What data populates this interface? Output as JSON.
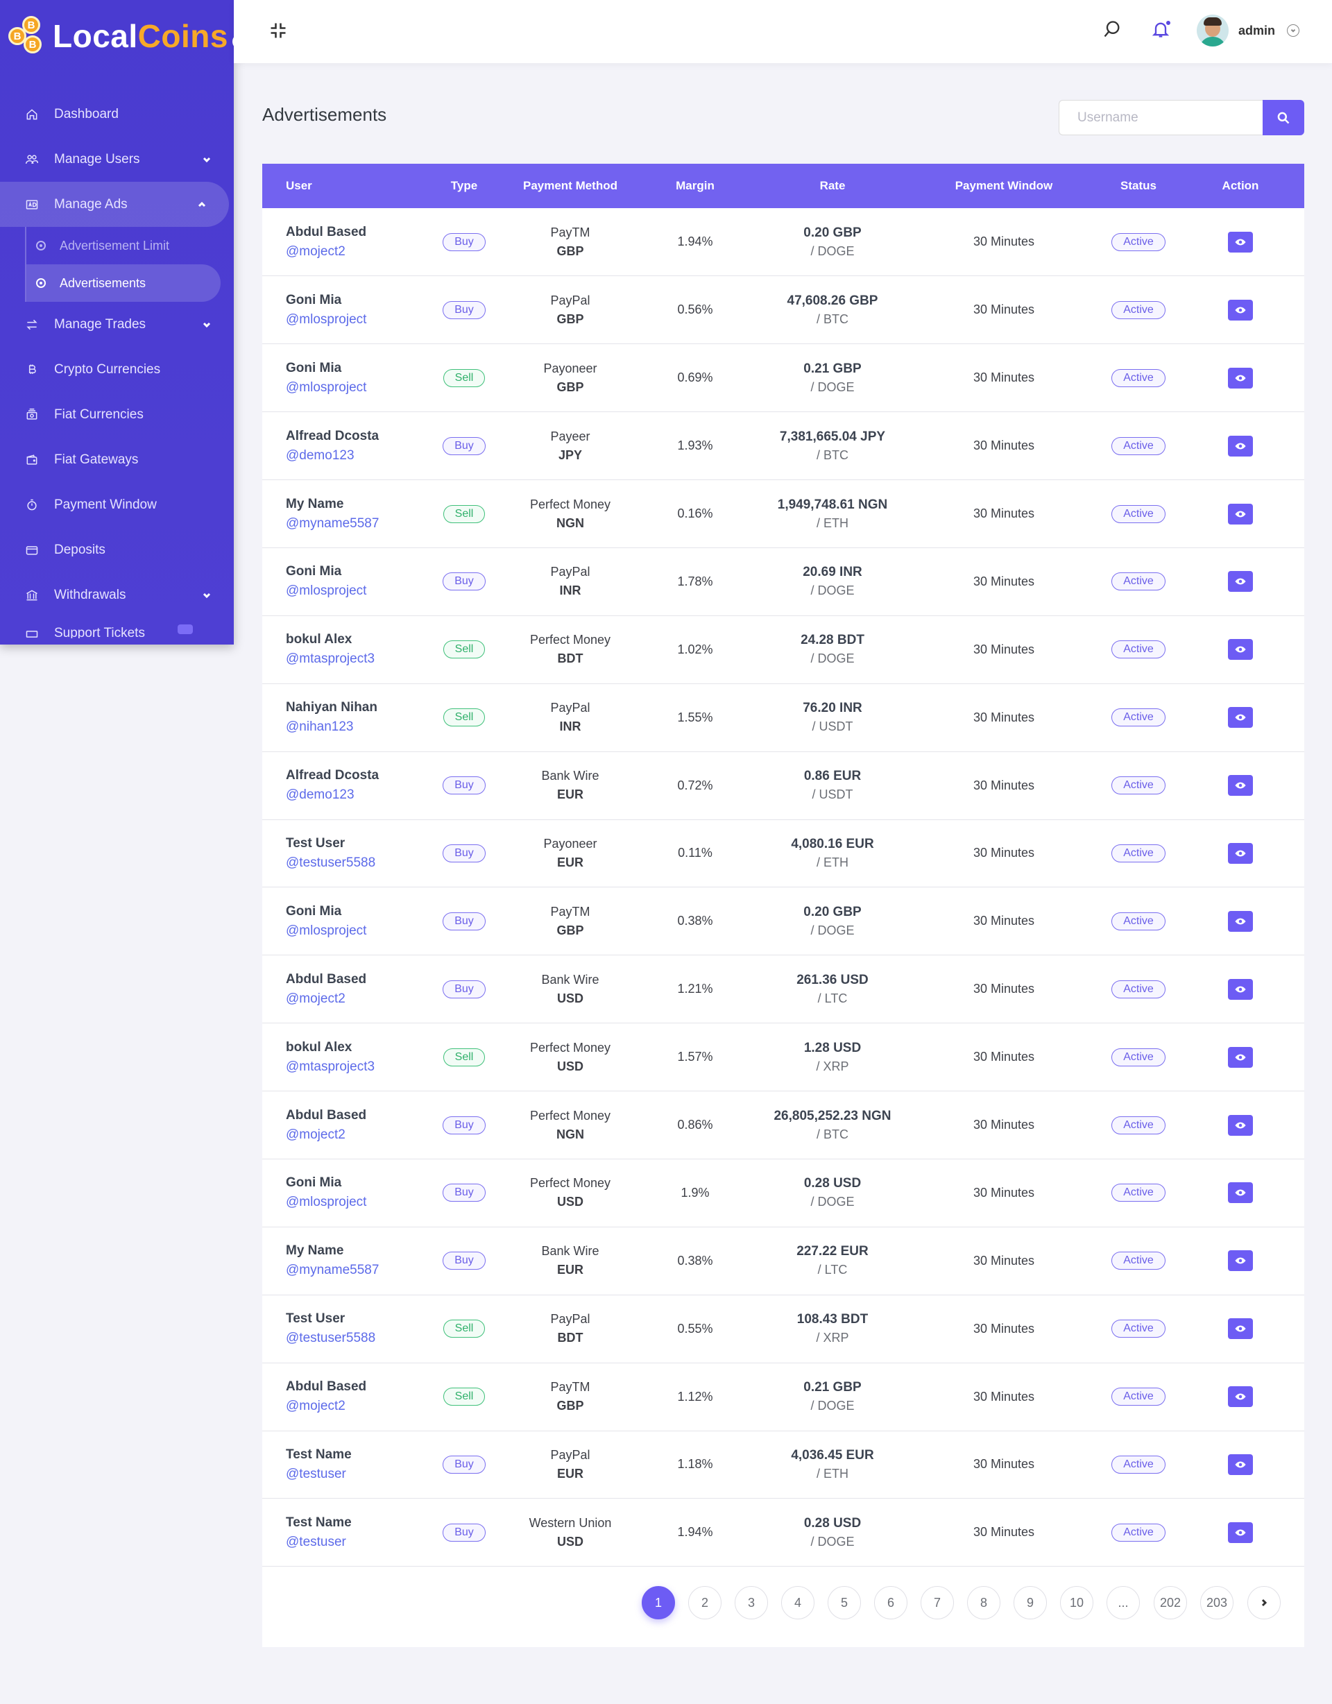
{
  "brand": {
    "part1": "Local",
    "part2": "Coins",
    "coin_symbol": "B"
  },
  "sidebar": {
    "items": [
      {
        "label": "Dashboard",
        "icon": "home-icon"
      },
      {
        "label": "Manage Users",
        "icon": "users-icon",
        "has_chevron": true
      },
      {
        "label": "Manage Ads",
        "icon": "ads-icon",
        "has_chevron": true,
        "expanded": true
      },
      {
        "label": "Manage Trades",
        "icon": "exchange-icon",
        "has_chevron": true
      },
      {
        "label": "Crypto Currencies",
        "icon": "bitcoin-icon"
      },
      {
        "label": "Fiat Currencies",
        "icon": "money-icon"
      },
      {
        "label": "Fiat Gateways",
        "icon": "wallet-icon"
      },
      {
        "label": "Payment Window",
        "icon": "timer-icon"
      },
      {
        "label": "Deposits",
        "icon": "card-icon"
      },
      {
        "label": "Withdrawals",
        "icon": "bank-icon",
        "has_chevron": true
      },
      {
        "label": "Support Tickets",
        "icon": "ticket-icon"
      }
    ],
    "ads_sub": [
      {
        "label": "Advertisement Limit"
      },
      {
        "label": "Advertisements",
        "active": true
      }
    ]
  },
  "topbar": {
    "user_name": "admin"
  },
  "page": {
    "title": "Advertisements"
  },
  "search": {
    "placeholder": "Username"
  },
  "table": {
    "headers": {
      "user": "User",
      "type": "Type",
      "payment_method": "Payment Method",
      "margin": "Margin",
      "rate": "Rate",
      "payment_window": "Payment Window",
      "status": "Status",
      "action": "Action"
    },
    "rows": [
      {
        "name": "Abdul Based",
        "handle": "@moject2",
        "type": "Buy",
        "pm": "PayTM",
        "pm_cur": "GBP",
        "margin": "1.94%",
        "rate": "0.20 GBP",
        "coin": "/ DOGE",
        "window": "30 Minutes",
        "status": "Active"
      },
      {
        "name": "Goni Mia",
        "handle": "@mlosproject",
        "type": "Buy",
        "pm": "PayPal",
        "pm_cur": "GBP",
        "margin": "0.56%",
        "rate": "47,608.26 GBP",
        "coin": "/ BTC",
        "window": "30 Minutes",
        "status": "Active"
      },
      {
        "name": "Goni Mia",
        "handle": "@mlosproject",
        "type": "Sell",
        "pm": "Payoneer",
        "pm_cur": "GBP",
        "margin": "0.69%",
        "rate": "0.21 GBP",
        "coin": "/ DOGE",
        "window": "30 Minutes",
        "status": "Active"
      },
      {
        "name": "Alfread Dcosta",
        "handle": "@demo123",
        "type": "Buy",
        "pm": "Payeer",
        "pm_cur": "JPY",
        "margin": "1.93%",
        "rate": "7,381,665.04 JPY",
        "coin": "/ BTC",
        "window": "30 Minutes",
        "status": "Active"
      },
      {
        "name": "My Name",
        "handle": "@myname5587",
        "type": "Sell",
        "pm": "Perfect Money",
        "pm_cur": "NGN",
        "margin": "0.16%",
        "rate": "1,949,748.61 NGN",
        "coin": "/ ETH",
        "window": "30 Minutes",
        "status": "Active"
      },
      {
        "name": "Goni Mia",
        "handle": "@mlosproject",
        "type": "Buy",
        "pm": "PayPal",
        "pm_cur": "INR",
        "margin": "1.78%",
        "rate": "20.69 INR",
        "coin": "/ DOGE",
        "window": "30 Minutes",
        "status": "Active"
      },
      {
        "name": "bokul Alex",
        "handle": "@mtasproject3",
        "type": "Sell",
        "pm": "Perfect Money",
        "pm_cur": "BDT",
        "margin": "1.02%",
        "rate": "24.28 BDT",
        "coin": "/ DOGE",
        "window": "30 Minutes",
        "status": "Active"
      },
      {
        "name": "Nahiyan Nihan",
        "handle": "@nihan123",
        "type": "Sell",
        "pm": "PayPal",
        "pm_cur": "INR",
        "margin": "1.55%",
        "rate": "76.20 INR",
        "coin": "/ USDT",
        "window": "30 Minutes",
        "status": "Active"
      },
      {
        "name": "Alfread Dcosta",
        "handle": "@demo123",
        "type": "Buy",
        "pm": "Bank Wire",
        "pm_cur": "EUR",
        "margin": "0.72%",
        "rate": "0.86 EUR",
        "coin": "/ USDT",
        "window": "30 Minutes",
        "status": "Active"
      },
      {
        "name": "Test User",
        "handle": "@testuser5588",
        "type": "Buy",
        "pm": "Payoneer",
        "pm_cur": "EUR",
        "margin": "0.11%",
        "rate": "4,080.16 EUR",
        "coin": "/ ETH",
        "window": "30 Minutes",
        "status": "Active"
      },
      {
        "name": "Goni Mia",
        "handle": "@mlosproject",
        "type": "Buy",
        "pm": "PayTM",
        "pm_cur": "GBP",
        "margin": "0.38%",
        "rate": "0.20 GBP",
        "coin": "/ DOGE",
        "window": "30 Minutes",
        "status": "Active"
      },
      {
        "name": "Abdul Based",
        "handle": "@moject2",
        "type": "Buy",
        "pm": "Bank Wire",
        "pm_cur": "USD",
        "margin": "1.21%",
        "rate": "261.36 USD",
        "coin": "/ LTC",
        "window": "30 Minutes",
        "status": "Active"
      },
      {
        "name": "bokul Alex",
        "handle": "@mtasproject3",
        "type": "Sell",
        "pm": "Perfect Money",
        "pm_cur": "USD",
        "margin": "1.57%",
        "rate": "1.28 USD",
        "coin": "/ XRP",
        "window": "30 Minutes",
        "status": "Active"
      },
      {
        "name": "Abdul Based",
        "handle": "@moject2",
        "type": "Buy",
        "pm": "Perfect Money",
        "pm_cur": "NGN",
        "margin": "0.86%",
        "rate": "26,805,252.23 NGN",
        "coin": "/ BTC",
        "window": "30 Minutes",
        "status": "Active"
      },
      {
        "name": "Goni Mia",
        "handle": "@mlosproject",
        "type": "Buy",
        "pm": "Perfect Money",
        "pm_cur": "USD",
        "margin": "1.9%",
        "rate": "0.28 USD",
        "coin": "/ DOGE",
        "window": "30 Minutes",
        "status": "Active"
      },
      {
        "name": "My Name",
        "handle": "@myname5587",
        "type": "Buy",
        "pm": "Bank Wire",
        "pm_cur": "EUR",
        "margin": "0.38%",
        "rate": "227.22 EUR",
        "coin": "/ LTC",
        "window": "30 Minutes",
        "status": "Active"
      },
      {
        "name": "Test User",
        "handle": "@testuser5588",
        "type": "Sell",
        "pm": "PayPal",
        "pm_cur": "BDT",
        "margin": "0.55%",
        "rate": "108.43 BDT",
        "coin": "/ XRP",
        "window": "30 Minutes",
        "status": "Active"
      },
      {
        "name": "Abdul Based",
        "handle": "@moject2",
        "type": "Sell",
        "pm": "PayTM",
        "pm_cur": "GBP",
        "margin": "1.12%",
        "rate": "0.21 GBP",
        "coin": "/ DOGE",
        "window": "30 Minutes",
        "status": "Active"
      },
      {
        "name": "Test Name",
        "handle": "@testuser",
        "type": "Buy",
        "pm": "PayPal",
        "pm_cur": "EUR",
        "margin": "1.18%",
        "rate": "4,036.45 EUR",
        "coin": "/ ETH",
        "window": "30 Minutes",
        "status": "Active"
      },
      {
        "name": "Test Name",
        "handle": "@testuser",
        "type": "Buy",
        "pm": "Western Union",
        "pm_cur": "USD",
        "margin": "1.94%",
        "rate": "0.28 USD",
        "coin": "/ DOGE",
        "window": "30 Minutes",
        "status": "Active"
      }
    ]
  },
  "pagination": {
    "pages": [
      "1",
      "2",
      "3",
      "4",
      "5",
      "6",
      "7",
      "8",
      "9",
      "10",
      "...",
      "202",
      "203"
    ],
    "current": "1",
    "next_icon": "chevron-right-icon"
  },
  "colors": {
    "primary": "#6d5cf4",
    "sidebar": "#4a3bd0",
    "brand_accent": "#f7a928",
    "sell": "#3fc07a"
  }
}
